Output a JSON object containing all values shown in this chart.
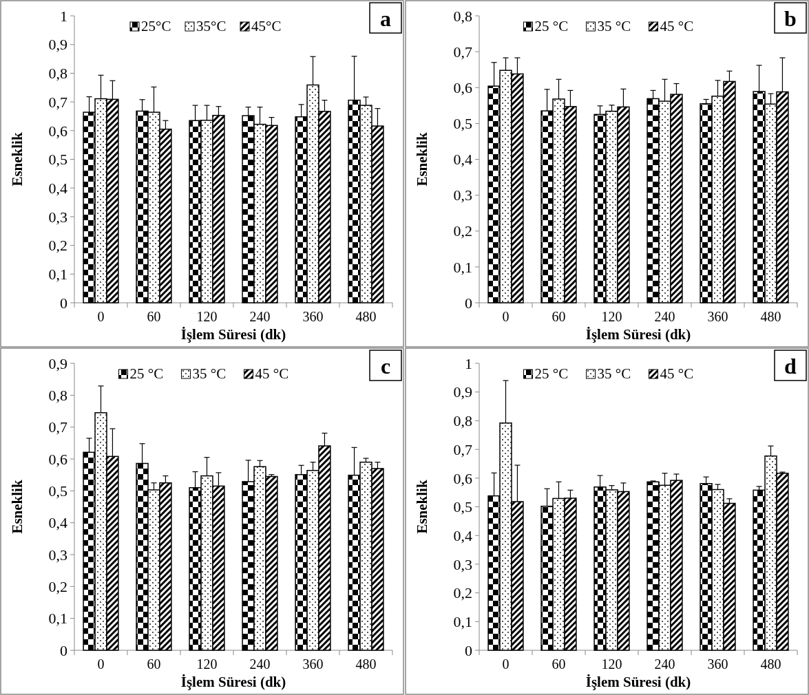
{
  "chart_data": [
    {
      "type": "bar",
      "xlabel": "İşlem Süresi (dk)",
      "ylabel": "Esneklik",
      "annotations": [
        "a"
      ],
      "categories": [
        "0",
        "60",
        "120",
        "240",
        "360",
        "480"
      ],
      "ylim": [
        0,
        1
      ],
      "yticks": [
        {
          "value": 0,
          "label": "0"
        },
        {
          "value": 0.1,
          "label": "0,1"
        },
        {
          "value": 0.2,
          "label": "0,2"
        },
        {
          "value": 0.3,
          "label": "0,3"
        },
        {
          "value": 0.4,
          "label": "0,4"
        },
        {
          "value": 0.5,
          "label": "0,5"
        },
        {
          "value": 0.6,
          "label": "0,6"
        },
        {
          "value": 0.7,
          "label": "0,7"
        },
        {
          "value": 0.8,
          "label": "0,8"
        },
        {
          "value": 0.9,
          "label": "0,9"
        },
        {
          "value": 1,
          "label": "1"
        }
      ],
      "grid": false,
      "legend": "top",
      "series": [
        {
          "name": "25°C",
          "color": "#000000",
          "values": [
            0.664,
            0.668,
            0.635,
            0.652,
            0.648,
            0.706
          ],
          "errors": [
            [
              0.664,
              0.718
            ],
            [
              0.668,
              0.708
            ],
            [
              0.635,
              0.688
            ],
            [
              0.652,
              0.682
            ],
            [
              0.648,
              0.691
            ],
            [
              0.706,
              0.859
            ]
          ]
        },
        {
          "name": "35°C",
          "color": "#000000",
          "values": [
            0.711,
            0.664,
            0.636,
            0.622,
            0.759,
            0.688
          ],
          "errors": [
            [
              0.711,
              0.793
            ],
            [
              0.664,
              0.752
            ],
            [
              0.636,
              0.688
            ],
            [
              0.622,
              0.682
            ],
            [
              0.759,
              0.858
            ],
            [
              0.688,
              0.717
            ]
          ]
        },
        {
          "name": "45°C",
          "color": "#000000",
          "values": [
            0.709,
            0.605,
            0.653,
            0.618,
            0.667,
            0.616
          ],
          "errors": [
            [
              0.709,
              0.774
            ],
            [
              0.605,
              0.635
            ],
            [
              0.653,
              0.684
            ],
            [
              0.618,
              0.646
            ],
            [
              0.667,
              0.706
            ],
            [
              0.616,
              0.677
            ]
          ]
        }
      ]
    },
    {
      "type": "bar",
      "xlabel": "İşlem Süresi (dk)",
      "ylabel": "Esneklik",
      "annotations": [
        "b"
      ],
      "categories": [
        "0",
        "60",
        "120",
        "240",
        "360",
        "480"
      ],
      "ylim": [
        0,
        0.8
      ],
      "yticks": [
        {
          "value": 0,
          "label": "0"
        },
        {
          "value": 0.1,
          "label": "0,1"
        },
        {
          "value": 0.2,
          "label": "0,2"
        },
        {
          "value": 0.3,
          "label": "0,3"
        },
        {
          "value": 0.4,
          "label": "0,4"
        },
        {
          "value": 0.5,
          "label": "0,5"
        },
        {
          "value": 0.6,
          "label": "0,6"
        },
        {
          "value": 0.7,
          "label": "0,7"
        },
        {
          "value": 0.8,
          "label": "0,8"
        }
      ],
      "grid": false,
      "legend": "top",
      "series": [
        {
          "name": "25 °C",
          "color": "#000000",
          "values": [
            0.604,
            0.535,
            0.525,
            0.569,
            0.555,
            0.589
          ],
          "errors": [
            [
              0.604,
              0.67
            ],
            [
              0.535,
              0.595
            ],
            [
              0.525,
              0.549
            ],
            [
              0.569,
              0.592
            ],
            [
              0.555,
              0.567
            ],
            [
              0.589,
              0.662
            ]
          ]
        },
        {
          "name": "35 °C",
          "color": "#000000",
          "values": [
            0.648,
            0.568,
            0.534,
            0.562,
            0.576,
            0.554
          ],
          "errors": [
            [
              0.648,
              0.683
            ],
            [
              0.568,
              0.623
            ],
            [
              0.534,
              0.551
            ],
            [
              0.562,
              0.623
            ],
            [
              0.576,
              0.62
            ],
            [
              0.554,
              0.583
            ]
          ]
        },
        {
          "name": "45 °C",
          "color": "#000000",
          "values": [
            0.638,
            0.547,
            0.546,
            0.581,
            0.617,
            0.588
          ],
          "errors": [
            [
              0.638,
              0.683
            ],
            [
              0.547,
              0.592
            ],
            [
              0.546,
              0.596
            ],
            [
              0.581,
              0.611
            ],
            [
              0.617,
              0.646
            ],
            [
              0.588,
              0.683
            ]
          ]
        }
      ]
    },
    {
      "type": "bar",
      "xlabel": "İşlem Süresi (dk)",
      "ylabel": "Esneklik",
      "annotations": [
        "c"
      ],
      "categories": [
        "0",
        "60",
        "120",
        "240",
        "360",
        "480"
      ],
      "ylim": [
        0,
        0.9
      ],
      "yticks": [
        {
          "value": 0,
          "label": "0"
        },
        {
          "value": 0.1,
          "label": "0,1"
        },
        {
          "value": 0.2,
          "label": "0,2"
        },
        {
          "value": 0.3,
          "label": "0,3"
        },
        {
          "value": 0.4,
          "label": "0,4"
        },
        {
          "value": 0.5,
          "label": "0,5"
        },
        {
          "value": 0.6,
          "label": "0,6"
        },
        {
          "value": 0.7,
          "label": "0,7"
        },
        {
          "value": 0.8,
          "label": "0,8"
        },
        {
          "value": 0.9,
          "label": "0,9"
        }
      ],
      "grid": false,
      "legend": "top",
      "series": [
        {
          "name": "25 °C",
          "color": "#000000",
          "values": [
            0.621,
            0.586,
            0.51,
            0.529,
            0.551,
            0.549
          ],
          "errors": [
            [
              0.621,
              0.665
            ],
            [
              0.586,
              0.648
            ],
            [
              0.51,
              0.56
            ],
            [
              0.529,
              0.596
            ],
            [
              0.551,
              0.58
            ],
            [
              0.549,
              0.636
            ]
          ]
        },
        {
          "name": "35 °C",
          "color": "#000000",
          "values": [
            0.745,
            0.503,
            0.547,
            0.576,
            0.564,
            0.59
          ],
          "errors": [
            [
              0.745,
              0.829
            ],
            [
              0.503,
              0.525
            ],
            [
              0.547,
              0.605
            ],
            [
              0.576,
              0.595
            ],
            [
              0.564,
              0.59
            ],
            [
              0.59,
              0.602
            ]
          ]
        },
        {
          "name": "45 °C",
          "color": "#000000",
          "values": [
            0.608,
            0.525,
            0.515,
            0.545,
            0.641,
            0.57
          ],
          "errors": [
            [
              0.608,
              0.695
            ],
            [
              0.525,
              0.547
            ],
            [
              0.515,
              0.557
            ],
            [
              0.545,
              0.551
            ],
            [
              0.641,
              0.681
            ],
            [
              0.57,
              0.59
            ]
          ]
        }
      ]
    },
    {
      "type": "bar",
      "xlabel": "İşlem Süresi (dk)",
      "ylabel": "Esneklik",
      "annotations": [
        "d"
      ],
      "categories": [
        "0",
        "60",
        "120",
        "240",
        "360",
        "480"
      ],
      "ylim": [
        0,
        1
      ],
      "yticks": [
        {
          "value": 0,
          "label": "0"
        },
        {
          "value": 0.1,
          "label": "0,1"
        },
        {
          "value": 0.2,
          "label": "0,2"
        },
        {
          "value": 0.3,
          "label": "0,3"
        },
        {
          "value": 0.4,
          "label": "0,4"
        },
        {
          "value": 0.5,
          "label": "0,5"
        },
        {
          "value": 0.6,
          "label": "0,6"
        },
        {
          "value": 0.7,
          "label": "0,7"
        },
        {
          "value": 0.8,
          "label": "0,8"
        },
        {
          "value": 0.9,
          "label": "0,9"
        },
        {
          "value": 1,
          "label": "1"
        }
      ],
      "grid": false,
      "legend": "top",
      "series": [
        {
          "name": "25 °C",
          "color": "#000000",
          "values": [
            0.538,
            0.502,
            0.569,
            0.587,
            0.581,
            0.558
          ],
          "errors": [
            [
              0.538,
              0.618
            ],
            [
              0.502,
              0.563
            ],
            [
              0.569,
              0.609
            ],
            [
              0.587,
              0.59
            ],
            [
              0.581,
              0.604
            ],
            [
              0.558,
              0.571
            ]
          ]
        },
        {
          "name": "35 °C",
          "color": "#000000",
          "values": [
            0.792,
            0.529,
            0.559,
            0.575,
            0.56,
            0.677
          ],
          "errors": [
            [
              0.792,
              0.94
            ],
            [
              0.529,
              0.587
            ],
            [
              0.559,
              0.574
            ],
            [
              0.575,
              0.617
            ],
            [
              0.56,
              0.578
            ],
            [
              0.677,
              0.712
            ]
          ]
        },
        {
          "name": "45 °C",
          "color": "#000000",
          "values": [
            0.518,
            0.53,
            0.553,
            0.592,
            0.512,
            0.617
          ],
          "errors": [
            [
              0.518,
              0.645
            ],
            [
              0.53,
              0.558
            ],
            [
              0.553,
              0.583
            ],
            [
              0.592,
              0.614
            ],
            [
              0.512,
              0.528
            ],
            [
              0.617,
              0.621
            ]
          ]
        }
      ]
    }
  ]
}
